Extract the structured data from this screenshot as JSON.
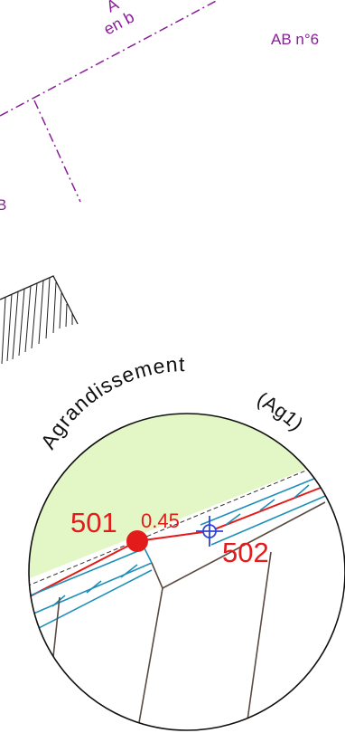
{
  "labels": {
    "corner_text_a": "A",
    "corner_text_b": "en b",
    "parcel_ref": "AB n°6",
    "parcel_ref_left": "B",
    "circle_title": "Agrandissement",
    "circle_code": "(Ag1)",
    "point_left": "501",
    "point_right": "502",
    "distance": "0.45"
  },
  "colors": {
    "boundary": "#8b1c9b",
    "zone_fill": "#e3f7c6",
    "red_line": "#e41b1b",
    "blue_line": "#1e8fb8",
    "brown_line": "#5a4a42",
    "point_marker": "#e41b1b",
    "cross_marker": "#2f45d6"
  }
}
